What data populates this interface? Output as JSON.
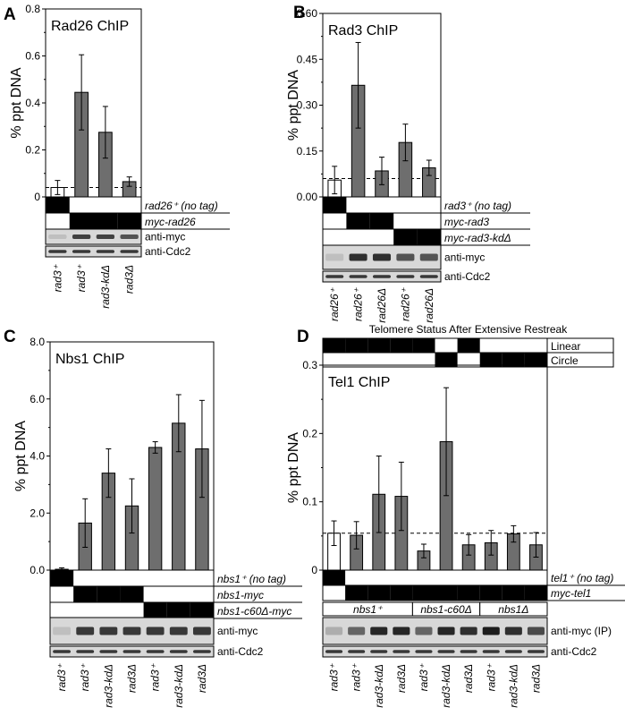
{
  "chart_data": [
    {
      "panel": "A",
      "type": "bar",
      "title": "Rad26 ChIP",
      "ylabel": "% ppt DNA",
      "ylim": [
        0,
        0.8
      ],
      "yticks": [
        0,
        0.2,
        0.4,
        0.6,
        0.8
      ],
      "ytick_labels": [
        "0",
        "0.2",
        "0.4",
        "0.6",
        "0.8"
      ],
      "categories": [
        "rad3⁺",
        "rad3⁺",
        "rad3-kdΔ",
        "rad3Δ"
      ],
      "values": [
        0.04,
        0.445,
        0.275,
        0.065
      ],
      "errors": [
        0.03,
        0.16,
        0.11,
        0.02
      ],
      "bar_colors": [
        "#ffffff",
        "#6e6e6e",
        "#6e6e6e",
        "#6e6e6e"
      ],
      "baseline": 0.04,
      "genotype_rows": [
        {
          "label": "rad26⁺ (no tag)",
          "cells": [
            1,
            0,
            0,
            0
          ]
        },
        {
          "label": "myc-rad26",
          "cells": [
            0,
            1,
            1,
            1
          ]
        }
      ],
      "groups": [],
      "blots": [
        {
          "label": "anti-myc",
          "bands": [
            0.05,
            0.75,
            0.75,
            0.65
          ]
        },
        {
          "label": "anti-Cdc2",
          "bands": [
            0.8,
            0.8,
            0.8,
            0.8
          ]
        }
      ]
    },
    {
      "panel": "B",
      "type": "bar",
      "title": "Rad3 ChIP",
      "ylabel": "% ppt DNA",
      "ylim": [
        0,
        0.6
      ],
      "yticks": [
        0,
        0.15,
        0.3,
        0.45,
        0.6
      ],
      "ytick_labels": [
        "0.00",
        "0.15",
        "0.30",
        "0.45",
        "0.60"
      ],
      "categories": [
        "rad26⁺",
        "rad26⁺",
        "rad26Δ",
        "rad26⁺",
        "rad26Δ"
      ],
      "values": [
        0.055,
        0.365,
        0.085,
        0.178,
        0.095
      ],
      "errors": [
        0.045,
        0.14,
        0.045,
        0.06,
        0.025
      ],
      "bar_colors": [
        "#ffffff",
        "#6e6e6e",
        "#6e6e6e",
        "#6e6e6e",
        "#6e6e6e"
      ],
      "baseline": 0.06,
      "genotype_rows": [
        {
          "label": "rad3⁺ (no tag)",
          "cells": [
            1,
            0,
            0,
            0,
            0
          ]
        },
        {
          "label": "myc-rad3",
          "cells": [
            0,
            1,
            1,
            0,
            0
          ]
        },
        {
          "label": "myc-rad3-kdΔ",
          "cells": [
            0,
            0,
            0,
            1,
            1
          ]
        }
      ],
      "groups": [],
      "blots": [
        {
          "label": "anti-myc",
          "bands": [
            0.05,
            0.85,
            0.85,
            0.65,
            0.65
          ]
        },
        {
          "label": "anti-Cdc2",
          "bands": [
            0.8,
            0.8,
            0.8,
            0.8,
            0.8
          ]
        }
      ]
    },
    {
      "panel": "C",
      "type": "bar",
      "title": "Nbs1 ChIP",
      "ylabel": "% ppt DNA",
      "ylim": [
        0,
        8
      ],
      "yticks": [
        0,
        2,
        4,
        6,
        8
      ],
      "ytick_labels": [
        "0.0",
        "2.0",
        "4.0",
        "6.0",
        "8.0"
      ],
      "categories": [
        "rad3⁺",
        "rad3⁺",
        "rad3-kdΔ",
        "rad3Δ",
        "rad3⁺",
        "rad3-kdΔ",
        "rad3Δ"
      ],
      "values": [
        0.03,
        1.65,
        3.4,
        2.25,
        4.3,
        5.15,
        4.25
      ],
      "errors": [
        0.05,
        0.85,
        0.85,
        0.95,
        0.2,
        1.0,
        1.7
      ],
      "bar_colors": [
        "#ffffff",
        "#6e6e6e",
        "#6e6e6e",
        "#6e6e6e",
        "#6e6e6e",
        "#6e6e6e",
        "#6e6e6e"
      ],
      "baseline": null,
      "genotype_rows": [
        {
          "label": "nbs1⁺ (no tag)",
          "cells": [
            1,
            0,
            0,
            0,
            0,
            0,
            0
          ]
        },
        {
          "label": "nbs1-myc",
          "cells": [
            0,
            1,
            1,
            1,
            0,
            0,
            0
          ]
        },
        {
          "label": "nbs1-c60Δ-myc",
          "cells": [
            0,
            0,
            0,
            0,
            1,
            1,
            1
          ]
        }
      ],
      "groups": [],
      "blots": [
        {
          "label": "anti-myc",
          "bands": [
            0.05,
            0.8,
            0.8,
            0.8,
            0.8,
            0.8,
            0.8
          ]
        },
        {
          "label": "anti-Cdc2",
          "bands": [
            0.8,
            0.8,
            0.8,
            0.8,
            0.8,
            0.8,
            0.8
          ]
        }
      ]
    },
    {
      "panel": "D",
      "type": "bar",
      "title": "Tel1 ChIP",
      "ylabel": "% ppt DNA",
      "ylim": [
        0,
        0.3
      ],
      "yticks": [
        0,
        0.1,
        0.2,
        0.3
      ],
      "ytick_labels": [
        "0",
        "0.1",
        "0.2",
        "0.3"
      ],
      "categories": [
        "rad3⁺",
        "rad3⁺",
        "rad3-kdΔ",
        "rad3Δ",
        "rad3⁺",
        "rad3-kdΔ",
        "rad3Δ",
        "rad3⁺",
        "rad3-kdΔ",
        "rad3Δ"
      ],
      "values": [
        0.054,
        0.051,
        0.111,
        0.108,
        0.028,
        0.188,
        0.037,
        0.04,
        0.053,
        0.037
      ],
      "errors": [
        0.018,
        0.02,
        0.056,
        0.05,
        0.01,
        0.079,
        0.015,
        0.018,
        0.012,
        0.018
      ],
      "bar_colors": [
        "#ffffff",
        "#6e6e6e",
        "#6e6e6e",
        "#6e6e6e",
        "#6e6e6e",
        "#6e6e6e",
        "#6e6e6e",
        "#6e6e6e",
        "#6e6e6e",
        "#6e6e6e"
      ],
      "baseline": 0.054,
      "top_title": "Telomere Status After Extensive Restreak",
      "top_rows": [
        {
          "label": "Linear",
          "cells": [
            1,
            1,
            1,
            1,
            1,
            0,
            1,
            0,
            0,
            0
          ]
        },
        {
          "label": "Circle",
          "cells": [
            0,
            0,
            0,
            0,
            0,
            1,
            0,
            1,
            1,
            1
          ]
        }
      ],
      "genotype_rows": [
        {
          "label": "tel1⁺ (no tag)",
          "cells": [
            1,
            0,
            0,
            0,
            0,
            0,
            0,
            0,
            0,
            0
          ]
        },
        {
          "label": "myc-tel1",
          "cells": [
            0,
            1,
            1,
            1,
            1,
            1,
            1,
            1,
            1,
            1
          ]
        }
      ],
      "groups": [
        {
          "label": "nbs1⁺",
          "start": 0,
          "end": 3
        },
        {
          "label": "nbs1-c60Δ",
          "start": 4,
          "end": 6
        },
        {
          "label": "nbs1Δ",
          "start": 7,
          "end": 9
        }
      ],
      "blots": [
        {
          "label": "anti-myc (IP)",
          "bands": [
            0.15,
            0.55,
            0.9,
            0.9,
            0.55,
            0.9,
            0.85,
            0.95,
            0.85,
            0.7
          ]
        },
        {
          "label": "anti-Cdc2",
          "bands": [
            0.8,
            0.8,
            0.8,
            0.8,
            0.8,
            0.8,
            0.8,
            0.8,
            0.8,
            0.8
          ]
        }
      ]
    }
  ]
}
